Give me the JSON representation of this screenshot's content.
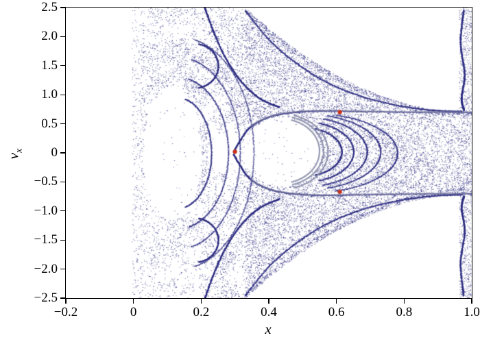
{
  "axes": {
    "xlabel": "x",
    "ylabel_main": "v",
    "ylabel_sub": "x"
  },
  "chart_data": {
    "type": "scatter",
    "title": "",
    "xlabel": "x",
    "ylabel": "v_x",
    "xlim": [
      -0.2,
      1.0
    ],
    "ylim": [
      -2.5,
      2.5
    ],
    "grid": false,
    "legend": null,
    "x_tick_values": [
      -0.2,
      0,
      0.2,
      0.4,
      0.6,
      0.8,
      1.0
    ],
    "x_tick_labels": [
      "−0.2",
      "0",
      "0.2",
      "0.4",
      "0.6",
      "0.8",
      "1.0"
    ],
    "y_tick_values": [
      2.5,
      2.0,
      1.5,
      1.0,
      0.5,
      0,
      -0.5,
      -1.0,
      -1.5,
      -2.0,
      -2.5
    ],
    "y_tick_labels": [
      "2.5",
      "2.0",
      "1.5",
      "1.0",
      "0.5",
      "0",
      "−0.5",
      "−1.0",
      "−1.5",
      "−2.0",
      "−2.5"
    ],
    "point_color": "#2e2e82",
    "attractor_color": "#8a8da8",
    "highlight_color": "#c9331b",
    "highlight_points": [
      [
        0.3,
        0.02
      ],
      [
        0.61,
        0.7
      ],
      [
        0.61,
        -0.67
      ]
    ],
    "series": [
      {
        "name": "chaotic-sea",
        "marker": "dot",
        "color": "#2e2e82",
        "data": "dense fractal scatter of unresolvable individual points (Poincare-section-like chaotic sea)"
      },
      {
        "name": "quasiperiodic-band",
        "marker": "curve",
        "color": "#8a8da8",
        "data": "thick gray crescent-shaped loops bounding the central white void"
      },
      {
        "name": "marked-points",
        "marker": "dot",
        "color": "#c9331b",
        "data": [
          [
            0.3,
            0.02
          ],
          [
            0.61,
            0.7
          ],
          [
            0.61,
            -0.67
          ]
        ]
      }
    ],
    "features": {
      "envelope": {
        "x_knee": 0.33,
        "v_min": 0.7,
        "v_max": 2.5,
        "power": 2.0
      },
      "voids": [
        {
          "cx": 0.115,
          "cy": 0.0,
          "rx": 0.085,
          "ry": 1.15
        },
        {
          "cx": 0.44,
          "cy": 0.02,
          "rx": 0.115,
          "ry": 0.6
        },
        {
          "cx": 0.27,
          "cy": 0.0,
          "rx": 0.05,
          "ry": 0.35
        }
      ],
      "filaments": [
        {
          "name": "separatrix",
          "mirror": true,
          "pts": [
            [
              0.295,
              0.02
            ],
            [
              0.315,
              0.22
            ],
            [
              0.345,
              0.45
            ],
            [
              0.4,
              0.62
            ],
            [
              0.47,
              0.7
            ],
            [
              0.56,
              0.725
            ],
            [
              0.68,
              0.715
            ],
            [
              0.82,
              0.705
            ],
            [
              1.0,
              0.7
            ]
          ]
        },
        {
          "name": "outer-funnel",
          "mirror": true,
          "pts": [
            [
              0.33,
              2.45
            ],
            [
              0.4,
              1.95
            ],
            [
              0.48,
              1.55
            ],
            [
              0.57,
              1.22
            ],
            [
              0.67,
              0.98
            ],
            [
              0.78,
              0.82
            ],
            [
              0.88,
              0.74
            ],
            [
              0.97,
              0.715
            ]
          ]
        },
        {
          "name": "left-tendril",
          "mirror": true,
          "pts": [
            [
              0.21,
              2.5
            ],
            [
              0.235,
              2.1
            ],
            [
              0.27,
              1.65
            ],
            [
              0.315,
              1.25
            ],
            [
              0.37,
              0.95
            ],
            [
              0.43,
              0.79
            ]
          ]
        },
        {
          "name": "right-edge",
          "mirror": true,
          "pts": [
            [
              0.975,
              2.45
            ],
            [
              0.966,
              1.9
            ],
            [
              0.978,
              1.35
            ],
            [
              0.969,
              0.95
            ],
            [
              0.976,
              0.74
            ]
          ]
        }
      ],
      "arcs": [
        {
          "cx": 0.13,
          "cy": 0,
          "rx": 0.1,
          "ry": 0.95,
          "a0": -1.35,
          "a1": 1.35
        },
        {
          "cx": 0.13,
          "cy": 0,
          "rx": 0.15,
          "ry": 1.3,
          "a0": -1.35,
          "a1": 1.35
        },
        {
          "cx": 0.13,
          "cy": 0,
          "rx": 0.185,
          "ry": 1.65,
          "a0": -1.35,
          "a1": 1.35
        },
        {
          "cx": 0.13,
          "cy": 0,
          "rx": 0.225,
          "ry": 2.0,
          "a0": -1.35,
          "a1": 1.35
        },
        {
          "cx": 0.18,
          "cy": 1.5,
          "rx": 0.07,
          "ry": 0.38,
          "a0": -1.4,
          "a1": 1.4
        },
        {
          "cx": 0.18,
          "cy": -1.5,
          "rx": 0.07,
          "ry": 0.38,
          "a0": -1.4,
          "a1": 1.4
        },
        {
          "cx": 0.5,
          "cy": 0.02,
          "rx": 0.115,
          "ry": 0.42,
          "a0": -1.25,
          "a1": 1.25
        },
        {
          "cx": 0.5,
          "cy": 0.02,
          "rx": 0.15,
          "ry": 0.52,
          "a0": -1.25,
          "a1": 1.25
        },
        {
          "cx": 0.5,
          "cy": 0.02,
          "rx": 0.19,
          "ry": 0.6,
          "a0": -1.25,
          "a1": 1.25
        },
        {
          "cx": 0.5,
          "cy": 0.02,
          "rx": 0.23,
          "ry": 0.655,
          "a0": -1.25,
          "a1": 1.25
        },
        {
          "cx": 0.51,
          "cy": 0.0,
          "rx": 0.27,
          "ry": 0.69,
          "a0": -1.25,
          "a1": 1.25
        }
      ],
      "attractor_arcs": [
        {
          "cx": 0.435,
          "cy": 0.03,
          "rx": 0.115,
          "ry": 0.555,
          "a0": -1.3,
          "a1": 1.3
        },
        {
          "cx": 0.435,
          "cy": 0.03,
          "rx": 0.127,
          "ry": 0.6,
          "a0": -1.3,
          "a1": 1.3
        },
        {
          "cx": 0.437,
          "cy": 0.02,
          "rx": 0.138,
          "ry": 0.645,
          "a0": -1.3,
          "a1": 1.3
        }
      ]
    }
  }
}
